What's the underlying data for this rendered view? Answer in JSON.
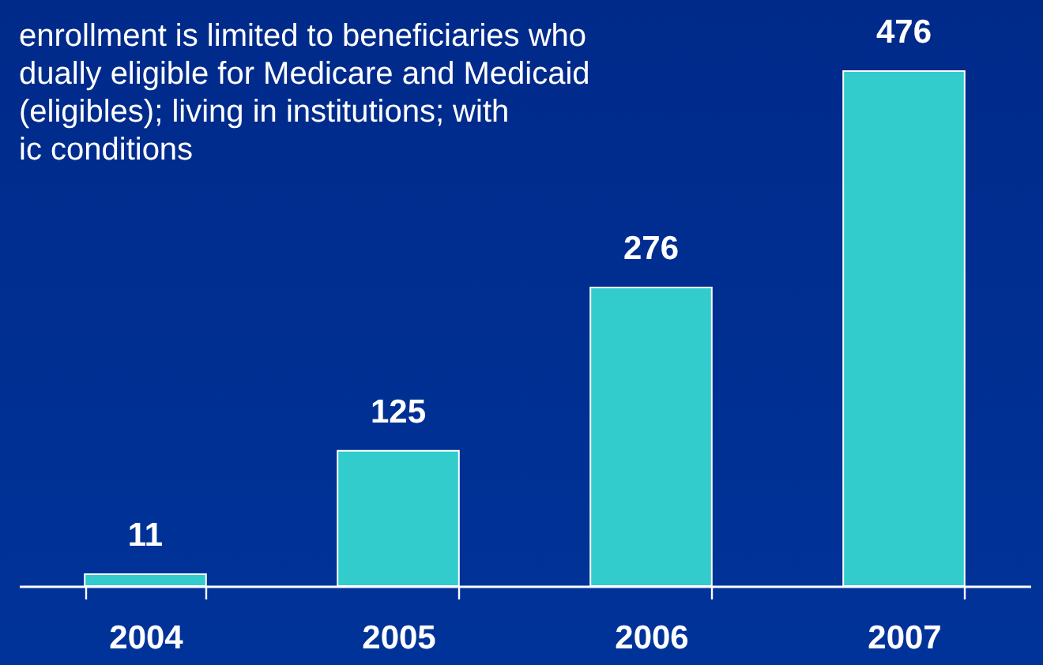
{
  "chart_data": {
    "type": "bar",
    "categories": [
      "2004",
      "2005",
      "2006",
      "2007"
    ],
    "values": [
      11,
      125,
      276,
      476
    ],
    "color": "#33cccc",
    "data_labels": true,
    "annotations": [
      "enrollment is limited to beneficiaries who\ndually eligible for Medicare and Medicaid\n(eligibles); living in institutions; with\nic conditions"
    ]
  }
}
